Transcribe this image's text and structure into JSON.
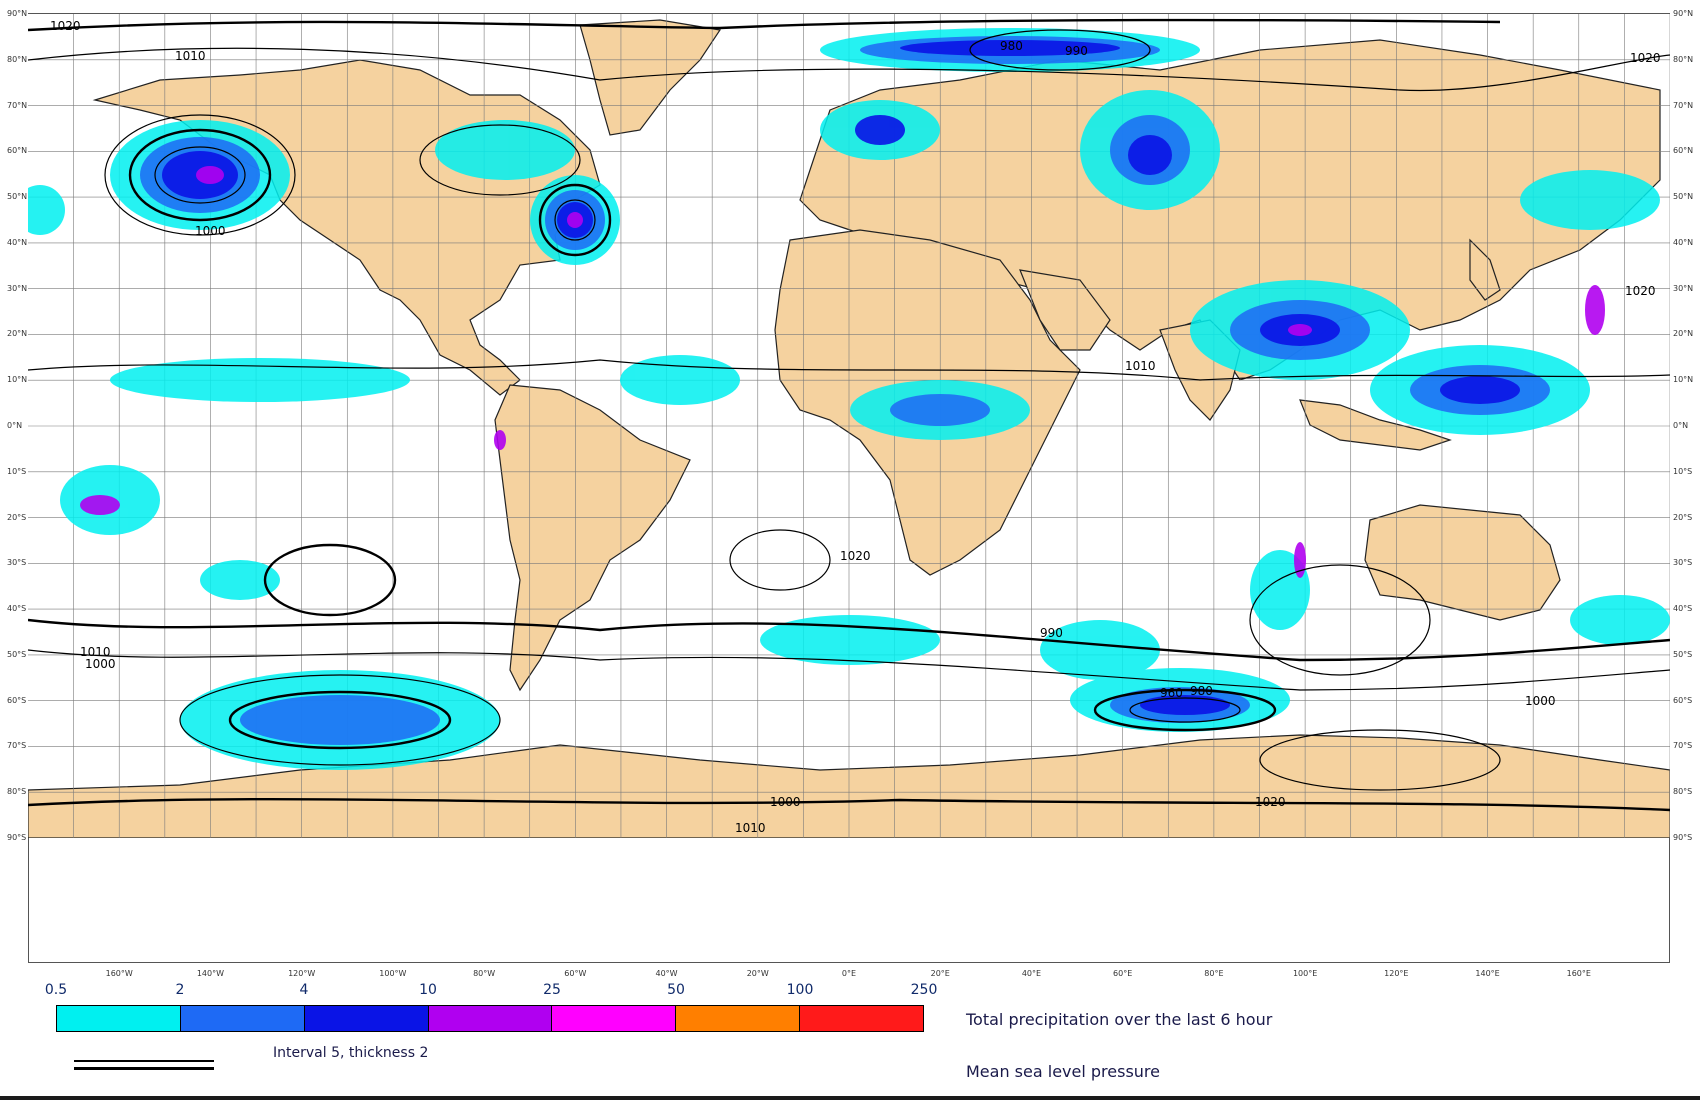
{
  "lat_labels": [
    "90°N",
    "80°N",
    "70°N",
    "60°N",
    "50°N",
    "40°N",
    "30°N",
    "20°N",
    "10°N",
    "0°N",
    "10°S",
    "20°S",
    "30°S",
    "40°S",
    "50°S",
    "60°S",
    "70°S",
    "80°S",
    "90°S"
  ],
  "lon_labels": [
    "160°W",
    "140°W",
    "120°W",
    "100°W",
    "80°W",
    "60°W",
    "40°W",
    "20°W",
    "0°E",
    "20°E",
    "40°E",
    "60°E",
    "80°E",
    "100°E",
    "120°E",
    "140°E",
    "160°E"
  ],
  "isobar_labels": [
    "1020",
    "1010",
    "1000",
    "990",
    "980",
    "960"
  ],
  "colorbar": {
    "ticks": [
      "0.5",
      "2",
      "4",
      "10",
      "25",
      "50",
      "100",
      "250"
    ],
    "colors": [
      "#00f0f0",
      "#1e6af5",
      "#0a14e6",
      "#b000f0",
      "#ff00ff",
      "#ff7f00",
      "#ff1a1a"
    ]
  },
  "legend": {
    "precip_title": "Total precipitation over the last 6 hour",
    "mslp_title": "Mean sea level pressure",
    "interval": "Interval 5, thickness 2"
  },
  "colors": {
    "land": "#f5d29f",
    "ocean": "#ffffff",
    "grid": "#7a7a7a",
    "contour": "#000000"
  }
}
